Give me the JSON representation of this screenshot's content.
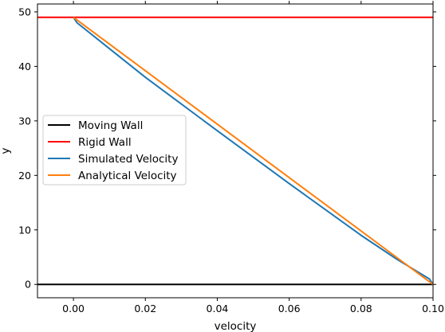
{
  "chart_data": {
    "type": "line",
    "title": "",
    "xlabel": "velocity",
    "ylabel": "y",
    "xlim": [
      -0.01,
      0.1
    ],
    "ylim": [
      -2.45,
      51.45
    ],
    "xticks": [
      0.0,
      0.02,
      0.04,
      0.06,
      0.08,
      0.1
    ],
    "xtick_labels": [
      "0.00",
      "0.02",
      "0.04",
      "0.06",
      "0.08",
      "0.10"
    ],
    "yticks": [
      0,
      10,
      20,
      30,
      40,
      50
    ],
    "ytick_labels": [
      "0",
      "10",
      "20",
      "30",
      "40",
      "50"
    ],
    "grid": false,
    "legend_position": "center-left",
    "series": [
      {
        "name": "Moving Wall",
        "color": "#000000",
        "kind": "hline",
        "y": 0
      },
      {
        "name": "Rigid Wall",
        "color": "#ff0000",
        "kind": "hline",
        "y": 49
      },
      {
        "name": "Simulated Velocity",
        "color": "#1f77b4",
        "kind": "line",
        "x": [
          0.0,
          0.001,
          0.02,
          0.04,
          0.06,
          0.08,
          0.09,
          0.099,
          0.1
        ],
        "y": [
          49.0,
          48.0,
          38.0,
          28.2,
          18.5,
          9.0,
          4.6,
          1.0,
          0.0
        ]
      },
      {
        "name": "Analytical Velocity",
        "color": "#ff7f0e",
        "kind": "line",
        "x": [
          0.0,
          0.1
        ],
        "y": [
          49.0,
          0.0
        ]
      }
    ]
  }
}
